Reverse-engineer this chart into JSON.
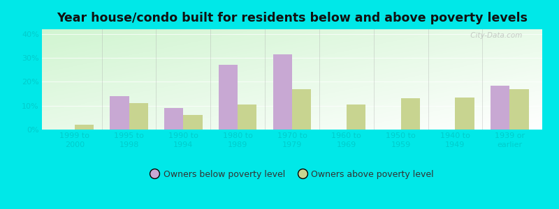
{
  "title": "Year house/condo built for residents below and above poverty levels",
  "categories": [
    "1999 to\n2000",
    "1995 to\n1998",
    "1990 to\n1994",
    "1980 to\n1989",
    "1970 to\n1979",
    "1960 to\n1969",
    "1950 to\n1959",
    "1940 to\n1949",
    "1939 or\nearlier"
  ],
  "below_poverty": [
    0.0,
    14.0,
    9.0,
    27.0,
    31.5,
    0.0,
    0.0,
    0.0,
    18.5
  ],
  "above_poverty": [
    2.0,
    11.0,
    6.0,
    10.5,
    17.0,
    10.5,
    13.0,
    13.5,
    17.0
  ],
  "below_color": "#c8a8d3",
  "above_color": "#c8d490",
  "background_outer": "#00e8e8",
  "ylim": [
    0,
    42
  ],
  "yticks": [
    0,
    10,
    20,
    30,
    40
  ],
  "ytick_labels": [
    "0%",
    "10%",
    "20%",
    "30%",
    "40%"
  ],
  "legend_below": "Owners below poverty level",
  "legend_above": "Owners above poverty level",
  "title_fontsize": 12.5,
  "tick_fontsize": 8,
  "legend_fontsize": 9,
  "bar_width": 0.35,
  "watermark": " City-Data.com"
}
